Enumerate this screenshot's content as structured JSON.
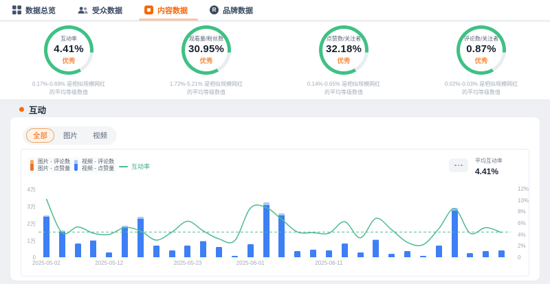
{
  "nav": {
    "tabs": [
      {
        "label": "数据总览",
        "icon": "grid-icon",
        "active": false
      },
      {
        "label": "受众数据",
        "icon": "people-icon",
        "active": false
      },
      {
        "label": "内容数据",
        "icon": "content-icon",
        "active": true
      },
      {
        "label": "品牌数据",
        "icon": "brand-icon",
        "active": false
      }
    ],
    "brand_icon_letter": "R"
  },
  "gauges": [
    {
      "title": "互动率",
      "value": "4.41%",
      "rating": "优秀",
      "caption_line1": "0.17%-0.69% 是相似规模网红",
      "caption_line2": "的平均等级数值"
    },
    {
      "title": "观看量/粉丝数",
      "value": "30.95%",
      "rating": "优秀",
      "caption_line1": "1.72%-5.21% 是相似规模网红",
      "caption_line2": "的平均等级数值"
    },
    {
      "title": "点赞数/关注者",
      "value": "32.18%",
      "rating": "优秀",
      "caption_line1": "0.14%-0.65% 是相似规模网红",
      "caption_line2": "的平均等级数值"
    },
    {
      "title": "评论数/关注者",
      "value": "0.87%",
      "rating": "优秀",
      "caption_line1": "0.02%-0.03% 是相似规模网红",
      "caption_line2": "的平均等级数值"
    }
  ],
  "section": {
    "title": "互动"
  },
  "filters": {
    "options": [
      {
        "label": "全部",
        "active": true
      },
      {
        "label": "图片",
        "active": false
      },
      {
        "label": "视频",
        "active": false
      }
    ]
  },
  "legend": [
    {
      "line1": "图片 - 评论数",
      "line2": "图片 - 点赞量",
      "color_top": "#F5AA5F",
      "color_bottom": "#E8742C"
    },
    {
      "line1": "视频 - 评论数",
      "line2": "视频 - 点赞量",
      "color_top": "#A9CBFB",
      "color_bottom": "#3D7FF5"
    },
    {
      "label": "互动率",
      "color": "#4CBC8F",
      "type": "line"
    }
  ],
  "summary": {
    "label": "平均互动率",
    "value": "4.41%"
  },
  "chart_data": {
    "type": "bar+line",
    "n_bars": 30,
    "x_tick_labels": [
      "2025-05-02",
      "2025-05-12",
      "2025-05-23",
      "2025-06-01",
      "2025-06-11"
    ],
    "x_tick_indices": [
      0,
      4,
      9,
      13,
      18
    ],
    "left_axis": {
      "ticks": [
        "0",
        "1万",
        "2万",
        "3万",
        "4万"
      ],
      "max_wan": 4
    },
    "right_axis": {
      "ticks": [
        "0",
        "2%",
        "4%",
        "6%",
        "8%",
        "10%",
        "12%"
      ],
      "max_pct": 12
    },
    "series": [
      {
        "name": "点赞量+评论数合计(万)",
        "values": [
          2.45,
          1.55,
          0.8,
          1.0,
          0.3,
          1.85,
          2.35,
          0.7,
          0.4,
          0.7,
          0.95,
          0.6,
          0.1,
          0.75,
          3.2,
          2.55,
          0.35,
          0.45,
          0.4,
          0.8,
          0.3,
          1.05,
          0.2,
          0.35,
          0.1,
          0.7,
          2.9,
          0.25,
          0.35,
          0.4
        ]
      },
      {
        "name": "评论数(万)",
        "values": [
          0.1,
          0.06,
          0.03,
          0.04,
          0.01,
          0.07,
          0.12,
          0.03,
          0.02,
          0.03,
          0.04,
          0.02,
          0.0,
          0.03,
          0.15,
          0.1,
          0.01,
          0.02,
          0.02,
          0.03,
          0.01,
          0.04,
          0.01,
          0.01,
          0.0,
          0.03,
          0.18,
          0.01,
          0.01,
          0.02
        ]
      },
      {
        "name": "互动率(%)",
        "values": [
          10.2,
          4.3,
          5.3,
          4.2,
          4.0,
          5.2,
          4.6,
          3.0,
          4.4,
          6.3,
          4.6,
          3.2,
          2.9,
          8.6,
          8.7,
          6.6,
          4.4,
          4.3,
          4.2,
          6.2,
          3.4,
          6.8,
          4.8,
          2.6,
          2.2,
          5.0,
          8.5,
          4.2,
          5.2,
          4.3
        ]
      }
    ],
    "average_rate_pct": 4.41,
    "colors": {
      "bar": "#3D7FF5",
      "bar_light": "#A9CBFB",
      "line": "#4CBC8F",
      "accent": "#F7690C",
      "gauge_green": "#3EC184"
    }
  }
}
